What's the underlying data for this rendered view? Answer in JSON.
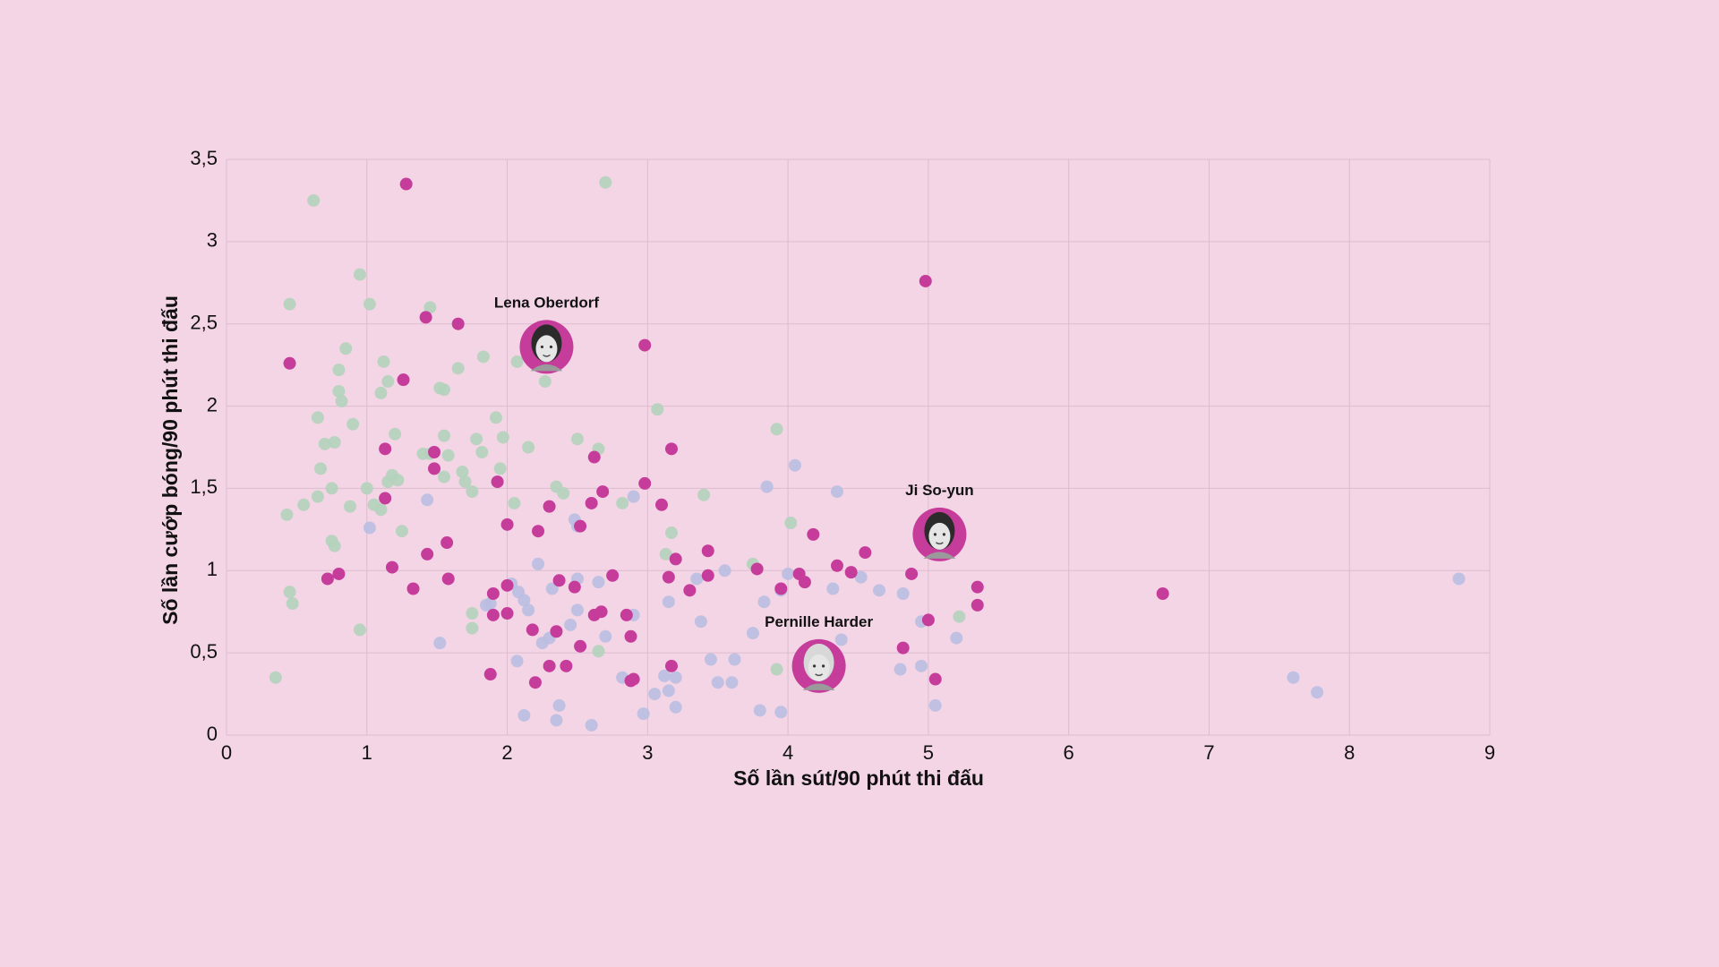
{
  "chart_data": {
    "type": "scatter",
    "title": "",
    "xlabel": "Số lần sút/90 phút thi đấu",
    "ylabel": "Số lần cướp bóng/90 phút thi đấu",
    "xlim": [
      0,
      9
    ],
    "ylim": [
      0,
      3.5
    ],
    "x_ticks": [
      "0",
      "1",
      "2",
      "3",
      "4",
      "5",
      "6",
      "7",
      "8",
      "9"
    ],
    "y_ticks": [
      "0",
      "0,5",
      "1",
      "1,5",
      "2",
      "2,5",
      "3",
      "3,5"
    ],
    "grid": true,
    "legend": "none",
    "colors": {
      "background": "#f4d5e6",
      "highlight": "#c63c9b",
      "green": "#b4d3bb",
      "blue": "#b9bee1"
    },
    "series": [
      {
        "color": "#b4d3bb",
        "points": [
          [
            0.35,
            0.35
          ],
          [
            0.62,
            3.25
          ],
          [
            0.45,
            2.62
          ],
          [
            0.45,
            0.87
          ],
          [
            0.47,
            0.8
          ],
          [
            0.43,
            1.34
          ],
          [
            0.55,
            1.4
          ],
          [
            0.65,
            1.45
          ],
          [
            0.67,
            1.62
          ],
          [
            0.7,
            1.77
          ],
          [
            0.65,
            1.93
          ],
          [
            0.75,
            1.5
          ],
          [
            0.75,
            1.18
          ],
          [
            0.77,
            1.15
          ],
          [
            0.77,
            1.78
          ],
          [
            0.8,
            2.22
          ],
          [
            0.8,
            2.09
          ],
          [
            0.82,
            2.03
          ],
          [
            0.85,
            2.35
          ],
          [
            0.88,
            1.39
          ],
          [
            0.9,
            1.89
          ],
          [
            0.95,
            2.8
          ],
          [
            0.95,
            0.64
          ],
          [
            1.0,
            1.5
          ],
          [
            1.02,
            2.62
          ],
          [
            1.05,
            1.4
          ],
          [
            1.1,
            1.37
          ],
          [
            1.1,
            2.08
          ],
          [
            1.12,
            2.27
          ],
          [
            1.15,
            2.15
          ],
          [
            1.15,
            1.54
          ],
          [
            1.18,
            1.58
          ],
          [
            1.2,
            1.83
          ],
          [
            1.22,
            1.55
          ],
          [
            1.25,
            1.24
          ],
          [
            1.4,
            1.71
          ],
          [
            1.45,
            2.6
          ],
          [
            1.45,
            1.71
          ],
          [
            1.52,
            2.11
          ],
          [
            1.55,
            2.1
          ],
          [
            1.55,
            1.82
          ],
          [
            1.58,
            1.7
          ],
          [
            1.65,
            2.23
          ],
          [
            1.68,
            1.6
          ],
          [
            1.7,
            1.54
          ],
          [
            1.75,
            1.48
          ],
          [
            1.75,
            0.65
          ],
          [
            1.75,
            0.74
          ],
          [
            1.78,
            1.8
          ],
          [
            1.82,
            1.72
          ],
          [
            1.83,
            2.3
          ],
          [
            1.92,
            1.93
          ],
          [
            1.95,
            1.62
          ],
          [
            1.97,
            1.81
          ],
          [
            2.05,
            1.41
          ],
          [
            2.07,
            2.27
          ],
          [
            2.15,
            1.75
          ],
          [
            2.27,
            2.15
          ],
          [
            2.35,
            1.51
          ],
          [
            2.4,
            1.47
          ],
          [
            2.5,
            1.8
          ],
          [
            2.65,
            1.74
          ],
          [
            2.7,
            3.36
          ],
          [
            2.82,
            1.41
          ],
          [
            3.07,
            1.98
          ],
          [
            3.13,
            1.1
          ],
          [
            3.17,
            1.23
          ],
          [
            3.4,
            1.46
          ],
          [
            3.75,
            1.04
          ],
          [
            3.92,
            1.86
          ],
          [
            4.02,
            1.29
          ],
          [
            3.92,
            0.4
          ],
          [
            4.15,
            0.5
          ],
          [
            5.22,
            0.72
          ],
          [
            2.65,
            0.51
          ],
          [
            1.55,
            1.57
          ]
        ]
      },
      {
        "color": "#b9bee1",
        "points": [
          [
            1.02,
            1.26
          ],
          [
            1.43,
            1.43
          ],
          [
            1.52,
            0.56
          ],
          [
            1.85,
            0.79
          ],
          [
            1.88,
            0.8
          ],
          [
            2.03,
            0.92
          ],
          [
            2.07,
            0.45
          ],
          [
            2.08,
            0.87
          ],
          [
            2.12,
            0.82
          ],
          [
            2.15,
            0.76
          ],
          [
            2.12,
            0.12
          ],
          [
            2.22,
            1.04
          ],
          [
            2.25,
            0.56
          ],
          [
            2.3,
            0.59
          ],
          [
            2.32,
            0.89
          ],
          [
            2.35,
            0.09
          ],
          [
            2.37,
            0.18
          ],
          [
            2.45,
            0.67
          ],
          [
            2.48,
            1.31
          ],
          [
            2.5,
            0.95
          ],
          [
            2.5,
            1.27
          ],
          [
            2.5,
            0.76
          ],
          [
            2.6,
            0.06
          ],
          [
            2.65,
            0.93
          ],
          [
            2.7,
            0.6
          ],
          [
            2.82,
            0.35
          ],
          [
            2.9,
            0.73
          ],
          [
            2.9,
            1.45
          ],
          [
            2.97,
            0.13
          ],
          [
            3.05,
            0.25
          ],
          [
            3.12,
            0.36
          ],
          [
            3.15,
            0.27
          ],
          [
            3.15,
            0.81
          ],
          [
            3.2,
            0.17
          ],
          [
            3.2,
            0.35
          ],
          [
            3.35,
            0.95
          ],
          [
            3.38,
            0.69
          ],
          [
            3.45,
            0.46
          ],
          [
            3.5,
            0.32
          ],
          [
            3.55,
            1.0
          ],
          [
            3.6,
            0.32
          ],
          [
            3.62,
            0.46
          ],
          [
            3.75,
            0.62
          ],
          [
            3.8,
            0.15
          ],
          [
            3.83,
            0.81
          ],
          [
            3.85,
            1.51
          ],
          [
            3.95,
            0.88
          ],
          [
            3.95,
            0.14
          ],
          [
            4.0,
            0.98
          ],
          [
            4.05,
            1.64
          ],
          [
            4.15,
            0.5
          ],
          [
            4.32,
            0.89
          ],
          [
            4.35,
            1.48
          ],
          [
            4.38,
            0.58
          ],
          [
            4.52,
            0.96
          ],
          [
            4.65,
            0.88
          ],
          [
            4.8,
            0.4
          ],
          [
            4.82,
            0.86
          ],
          [
            4.95,
            0.69
          ],
          [
            4.95,
            0.42
          ],
          [
            5.05,
            0.18
          ],
          [
            5.2,
            0.59
          ],
          [
            7.6,
            0.35
          ],
          [
            7.77,
            0.26
          ],
          [
            8.78,
            0.95
          ]
        ]
      },
      {
        "color": "#c63c9b",
        "points": [
          [
            0.45,
            2.26
          ],
          [
            0.72,
            0.95
          ],
          [
            0.8,
            0.98
          ],
          [
            1.13,
            1.74
          ],
          [
            1.13,
            1.44
          ],
          [
            1.18,
            1.02
          ],
          [
            1.28,
            3.35
          ],
          [
            1.26,
            2.16
          ],
          [
            1.33,
            0.89
          ],
          [
            1.42,
            2.54
          ],
          [
            1.43,
            1.1
          ],
          [
            1.48,
            1.72
          ],
          [
            1.48,
            1.62
          ],
          [
            1.57,
            1.17
          ],
          [
            1.58,
            0.95
          ],
          [
            1.65,
            2.5
          ],
          [
            1.88,
            0.37
          ],
          [
            1.9,
            0.86
          ],
          [
            1.9,
            0.73
          ],
          [
            1.93,
            1.54
          ],
          [
            2.0,
            1.28
          ],
          [
            2.0,
            0.74
          ],
          [
            2.0,
            0.91
          ],
          [
            2.2,
            0.32
          ],
          [
            2.18,
            0.64
          ],
          [
            2.22,
            1.24
          ],
          [
            2.3,
            1.39
          ],
          [
            2.3,
            0.42
          ],
          [
            2.35,
            0.63
          ],
          [
            2.37,
            0.94
          ],
          [
            2.42,
            0.42
          ],
          [
            2.48,
            0.9
          ],
          [
            2.52,
            1.27
          ],
          [
            2.52,
            0.54
          ],
          [
            2.6,
            1.41
          ],
          [
            2.62,
            1.69
          ],
          [
            2.62,
            0.73
          ],
          [
            2.67,
            0.75
          ],
          [
            2.68,
            1.48
          ],
          [
            2.75,
            0.97
          ],
          [
            2.85,
            0.73
          ],
          [
            2.88,
            0.33
          ],
          [
            2.88,
            0.6
          ],
          [
            2.98,
            1.53
          ],
          [
            2.98,
            2.37
          ],
          [
            3.1,
            1.4
          ],
          [
            3.15,
            0.96
          ],
          [
            3.17,
            0.42
          ],
          [
            3.17,
            1.74
          ],
          [
            3.2,
            1.07
          ],
          [
            3.3,
            0.88
          ],
          [
            3.43,
            0.97
          ],
          [
            3.43,
            1.12
          ],
          [
            3.78,
            1.01
          ],
          [
            3.95,
            0.89
          ],
          [
            4.08,
            0.98
          ],
          [
            4.12,
            0.93
          ],
          [
            4.18,
            1.22
          ],
          [
            4.35,
            1.03
          ],
          [
            4.45,
            0.99
          ],
          [
            4.55,
            1.11
          ],
          [
            4.82,
            0.53
          ],
          [
            4.88,
            0.98
          ],
          [
            4.98,
            2.76
          ],
          [
            5.0,
            0.7
          ],
          [
            5.05,
            0.34
          ],
          [
            5.35,
            0.9
          ],
          [
            5.35,
            0.79
          ],
          [
            6.67,
            0.86
          ],
          [
            2.9,
            0.34
          ]
        ]
      }
    ],
    "annotations": [
      {
        "label": "Lena Oberdorf",
        "x": 2.28,
        "y": 2.36,
        "icon": "player-portrait-icon"
      },
      {
        "label": "Ji So-yun",
        "x": 5.08,
        "y": 1.22,
        "icon": "player-portrait-icon"
      },
      {
        "label": "Pernille Harder",
        "x": 4.22,
        "y": 0.42,
        "icon": "player-portrait-icon"
      }
    ]
  }
}
